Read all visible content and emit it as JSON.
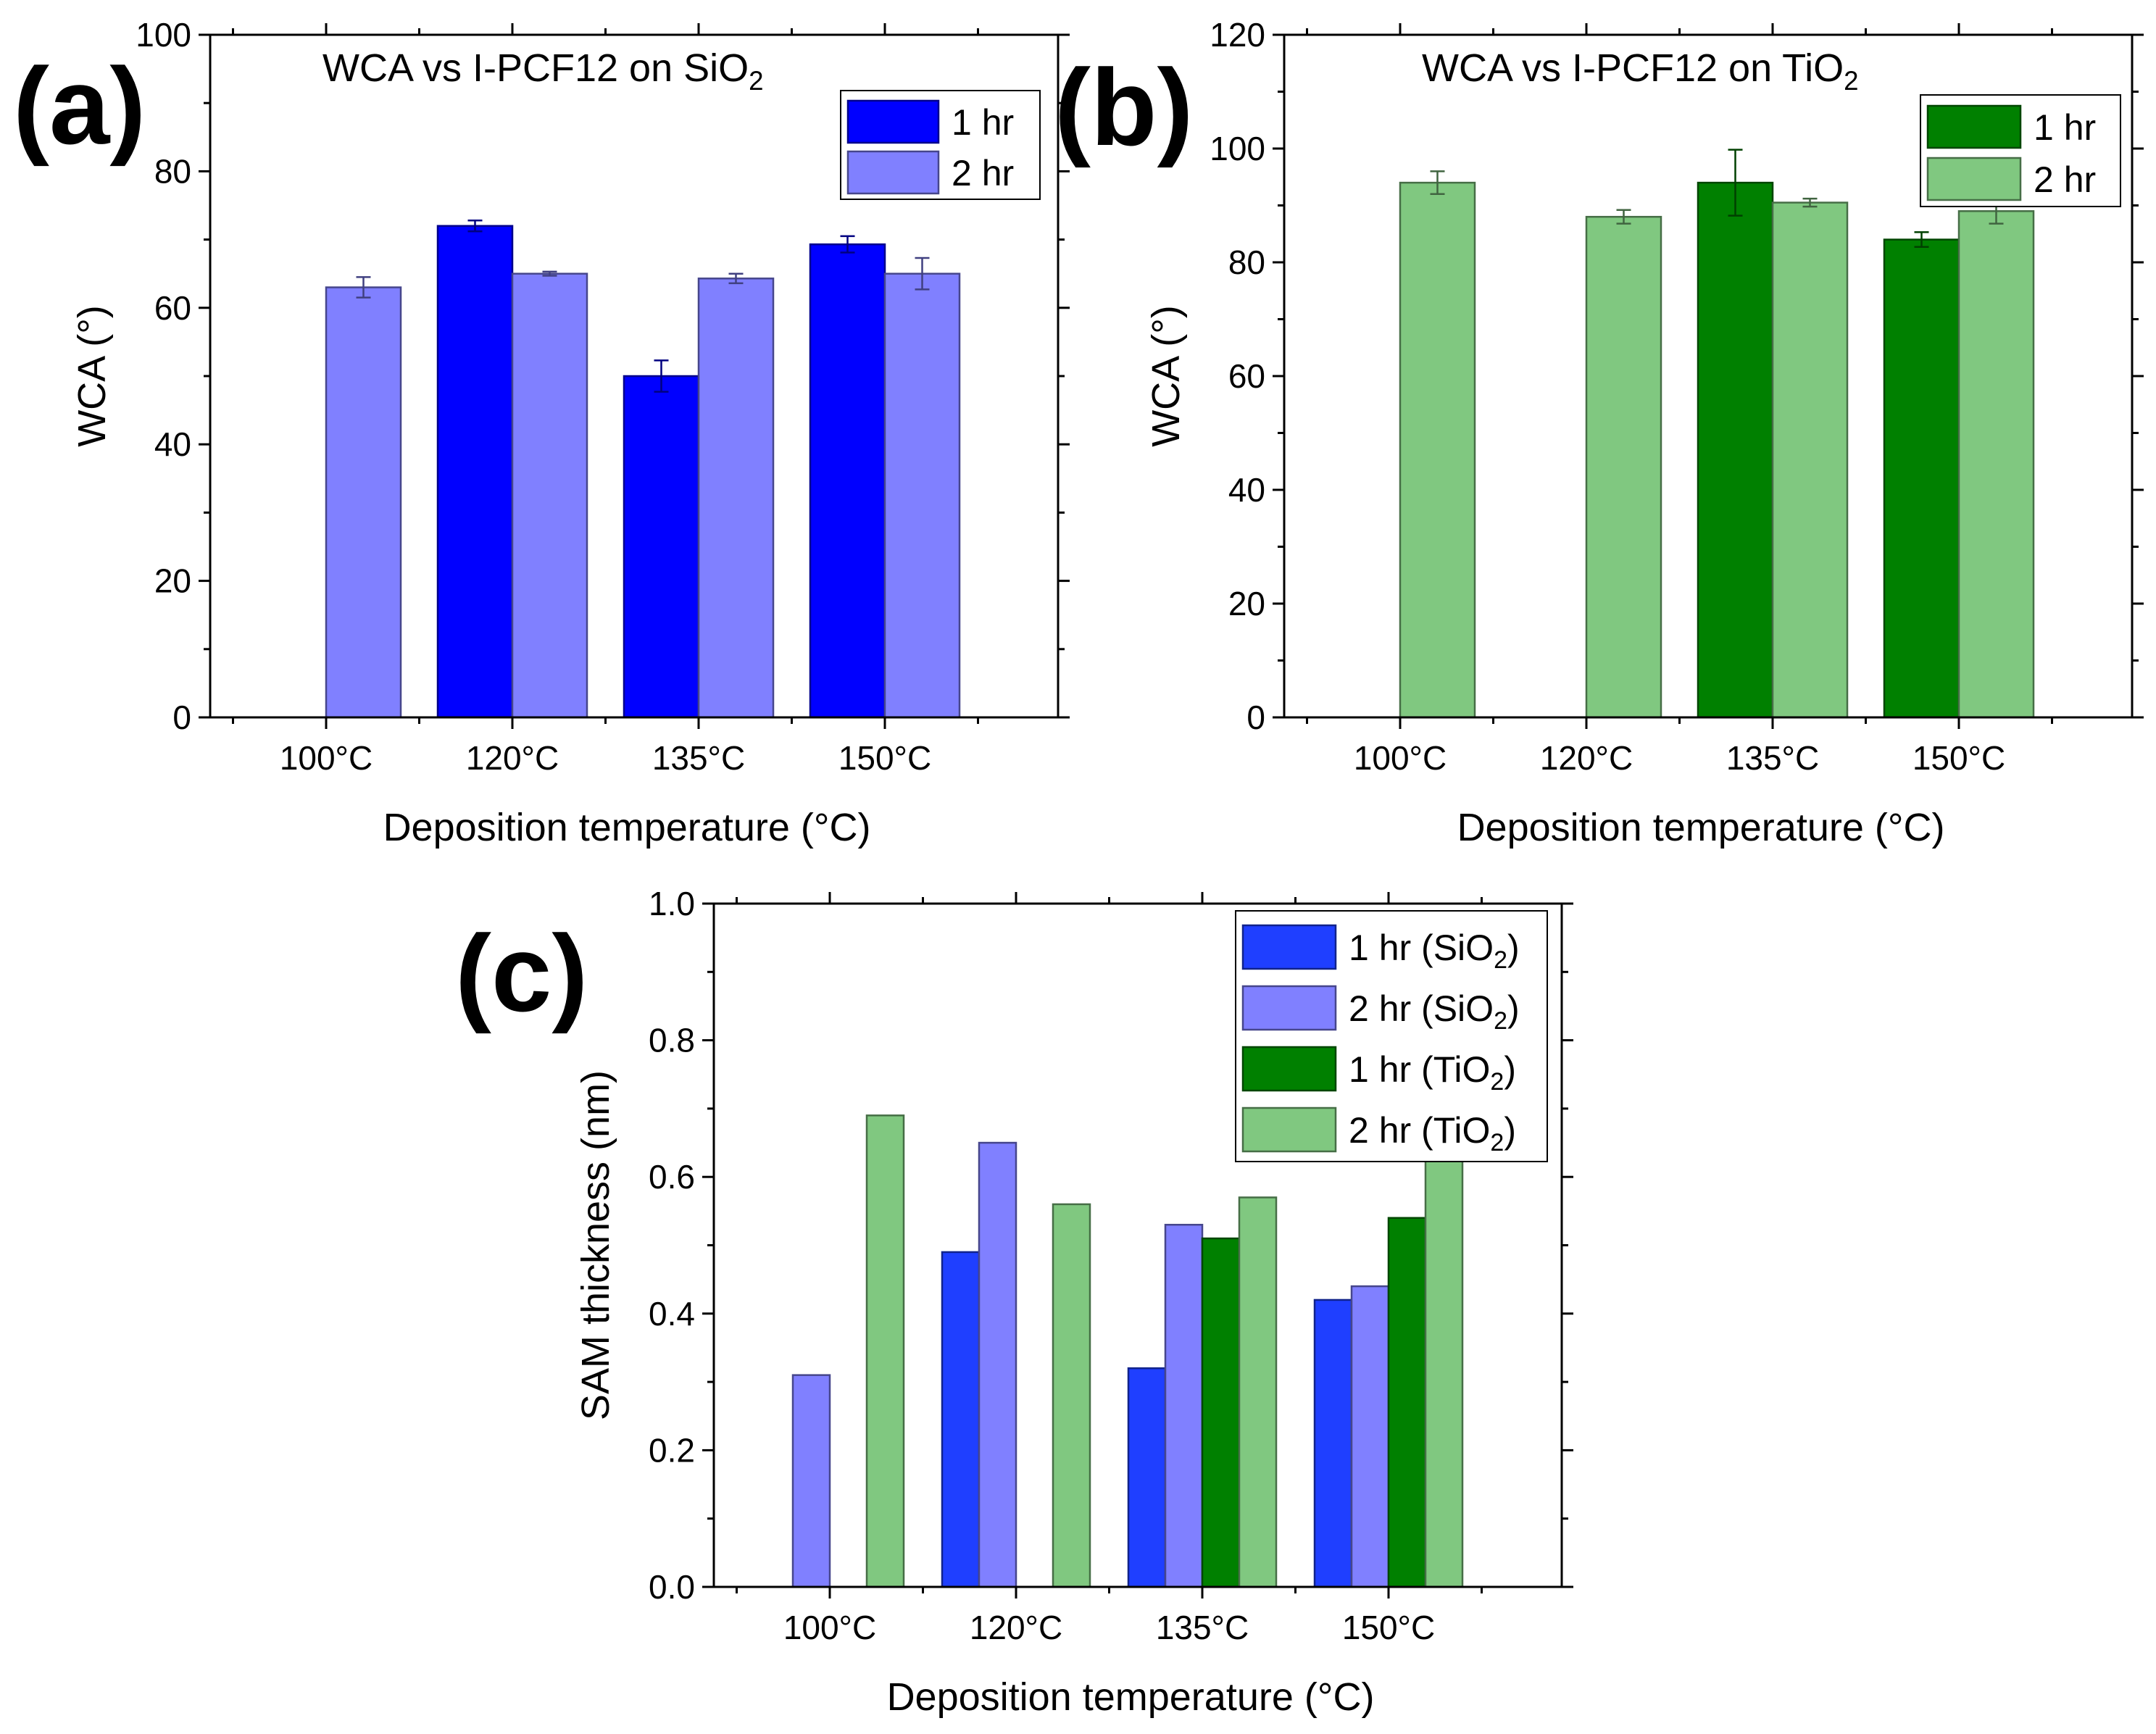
{
  "figure": {
    "panels": [
      "(a)",
      "(b)",
      "(c)"
    ]
  },
  "chart_data": [
    {
      "type": "bar",
      "panel": "(a)",
      "title_main": "WCA vs I-PCF12 on SiO",
      "title_sub": "2",
      "categories": [
        "100°C",
        "120°C",
        "135°C",
        "150°C"
      ],
      "xlabel": "Deposition temperature (°C)",
      "ylabel": "WCA (°)",
      "ylim": [
        0,
        100
      ],
      "yticks": [
        0,
        20,
        40,
        60,
        80,
        100
      ],
      "yticklabels": [
        "0",
        "20",
        "40",
        "60",
        "80",
        "100"
      ],
      "legend_position": "top-right",
      "series": [
        {
          "name": "1 hr",
          "legend_main": "1 hr",
          "legend_sub": "",
          "legend_tail": "",
          "color": "#0000ff",
          "values": [
            null,
            72,
            50,
            69.3
          ],
          "errors": [
            null,
            0.8,
            2.3,
            1.2
          ]
        },
        {
          "name": "2 hr",
          "legend_main": "2 hr",
          "legend_sub": "",
          "legend_tail": "",
          "color": "#8080ff",
          "values": [
            63,
            65,
            64.3,
            65
          ],
          "errors": [
            1.5,
            0.3,
            0.7,
            2.3
          ]
        }
      ]
    },
    {
      "type": "bar",
      "panel": "(b)",
      "title_main": "WCA vs I-PCF12 on TiO",
      "title_sub": "2",
      "categories": [
        "100°C",
        "120°C",
        "135°C",
        "150°C"
      ],
      "xlabel": "Deposition temperature (°C)",
      "ylabel": "WCA (°)",
      "ylim": [
        0,
        120
      ],
      "yticks": [
        0,
        20,
        40,
        60,
        80,
        100,
        120
      ],
      "yticklabels": [
        "0",
        "20",
        "40",
        "60",
        "80",
        "100",
        "120"
      ],
      "legend_position": "top-right",
      "series": [
        {
          "name": "1 hr",
          "legend_main": "1 hr",
          "legend_sub": "",
          "legend_tail": "",
          "color": "#008000",
          "values": [
            null,
            null,
            94,
            84
          ],
          "errors": [
            null,
            null,
            5.8,
            1.3
          ]
        },
        {
          "name": "2 hr",
          "legend_main": "2 hr",
          "legend_sub": "",
          "legend_tail": "",
          "color": "#80c880",
          "values": [
            94,
            88,
            90.5,
            89
          ],
          "errors": [
            2,
            1.2,
            0.7,
            2.2
          ]
        }
      ]
    },
    {
      "type": "bar",
      "panel": "(c)",
      "categories": [
        "100°C",
        "120°C",
        "135°C",
        "150°C"
      ],
      "xlabel": "Deposition temperature (°C)",
      "ylabel": "SAM thickness (nm)",
      "ylim": [
        0,
        1.0
      ],
      "yticks": [
        0,
        0.2,
        0.4,
        0.6,
        0.8,
        1.0
      ],
      "yticklabels": [
        "0.0",
        "0.2",
        "0.4",
        "0.6",
        "0.8",
        "1.0"
      ],
      "legend_position": "top-right",
      "series": [
        {
          "name": "1 hr (SiO2)",
          "legend_main": "1 hr (SiO",
          "legend_sub": "2",
          "legend_tail": ")",
          "color": "#1f3fff",
          "values": [
            null,
            0.49,
            0.32,
            0.42
          ]
        },
        {
          "name": "2 hr (SiO2)",
          "legend_main": "2 hr (SiO",
          "legend_sub": "2",
          "legend_tail": ")",
          "color": "#8080ff",
          "values": [
            0.31,
            0.65,
            0.53,
            0.44
          ]
        },
        {
          "name": "1 hr (TiO2)",
          "legend_main": "1 hr (TiO",
          "legend_sub": "2",
          "legend_tail": ")",
          "color": "#008000",
          "values": [
            null,
            null,
            0.51,
            0.54
          ]
        },
        {
          "name": "2 hr (TiO2)",
          "legend_main": "2 hr (TiO",
          "legend_sub": "2",
          "legend_tail": ")",
          "color": "#80c880",
          "values": [
            0.69,
            0.56,
            0.57,
            0.63
          ]
        }
      ]
    }
  ]
}
